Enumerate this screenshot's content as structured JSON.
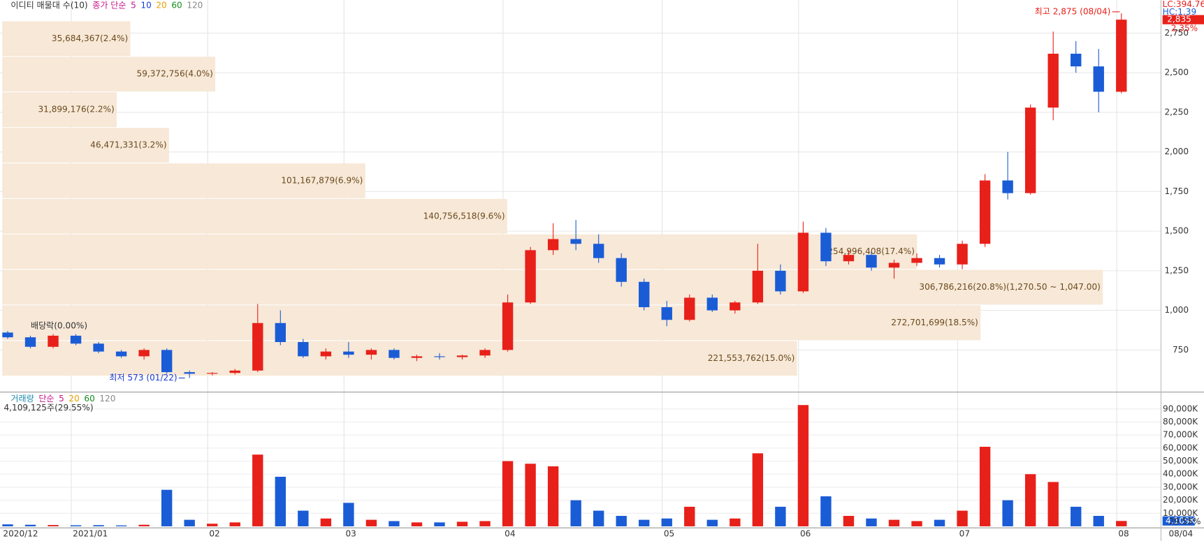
{
  "chart_data": {
    "type": "candlestick",
    "legend": [
      "이디티 매물대 수(10)",
      "종가 단순",
      "5",
      "10",
      "20",
      "60",
      "120"
    ],
    "legend_colors": [
      "#333",
      "#c8168c",
      "#c8168c",
      "#1a3cd6",
      "#e8a000",
      "#13901a",
      "#888"
    ],
    "categories": [
      "2020/12",
      null,
      null,
      "2021/01",
      null,
      null,
      null,
      null,
      null,
      "02",
      null,
      null,
      null,
      null,
      null,
      "03",
      null,
      null,
      null,
      null,
      null,
      null,
      "04",
      null,
      null,
      null,
      null,
      null,
      null,
      "05",
      null,
      null,
      null,
      null,
      null,
      "06",
      null,
      null,
      null,
      null,
      null,
      null,
      "07",
      null,
      null,
      null,
      null,
      null,
      null,
      "08"
    ],
    "last_date": "08/04",
    "open": [
      860,
      830,
      770,
      840,
      790,
      740,
      710,
      750,
      610,
      600,
      605,
      620,
      920,
      800,
      710,
      740,
      720,
      750,
      700,
      710,
      705,
      715,
      750,
      1050,
      1380,
      1450,
      1420,
      1330,
      1180,
      1020,
      940,
      1080,
      1000,
      1050,
      1250,
      1120,
      1490,
      1310,
      1350,
      1270,
      1300,
      1330,
      1290,
      1420,
      1820,
      1740,
      2280,
      2620,
      2540,
      2380
    ],
    "high": [
      870,
      840,
      850,
      850,
      800,
      750,
      760,
      760,
      620,
      610,
      630,
      1040,
      1000,
      820,
      760,
      800,
      760,
      760,
      720,
      730,
      720,
      760,
      1100,
      1400,
      1550,
      1570,
      1480,
      1360,
      1200,
      1060,
      1100,
      1100,
      1060,
      1420,
      1290,
      1560,
      1520,
      1380,
      1370,
      1320,
      1360,
      1350,
      1440,
      1860,
      2000,
      2300,
      2760,
      2700,
      2650,
      2875
    ],
    "low": [
      820,
      760,
      760,
      780,
      730,
      700,
      690,
      600,
      573,
      590,
      595,
      610,
      780,
      700,
      690,
      700,
      690,
      690,
      680,
      690,
      690,
      700,
      740,
      1040,
      1350,
      1380,
      1300,
      1150,
      1000,
      900,
      930,
      990,
      980,
      1040,
      1100,
      1110,
      1280,
      1290,
      1250,
      1200,
      1280,
      1270,
      1260,
      1400,
      1700,
      1730,
      2200,
      2500,
      2250,
      2370
    ],
    "close": [
      830,
      770,
      840,
      790,
      740,
      710,
      750,
      610,
      600,
      605,
      620,
      920,
      800,
      710,
      740,
      720,
      750,
      700,
      710,
      705,
      715,
      750,
      1050,
      1380,
      1450,
      1420,
      1330,
      1180,
      1020,
      940,
      1080,
      1000,
      1050,
      1250,
      1120,
      1490,
      1310,
      1350,
      1270,
      1300,
      1330,
      1290,
      1420,
      1820,
      1740,
      2280,
      2620,
      2540,
      2380,
      2835
    ],
    "up_color": "#e8201a",
    "down_color": "#1a5cd6",
    "ylim": [
      489,
      2910
    ],
    "yticks": [
      {
        "value": 750,
        "label": "750"
      },
      {
        "value": 1000,
        "label": "1,000"
      },
      {
        "value": 1250,
        "label": "1,250"
      },
      {
        "value": 1500,
        "label": "1,500"
      },
      {
        "value": 1750,
        "label": "1,750"
      },
      {
        "value": 2000,
        "label": "2,000"
      },
      {
        "value": 2250,
        "label": "2,250"
      },
      {
        "value": 2500,
        "label": "2,500"
      },
      {
        "value": 2750,
        "label": "2,750"
      }
    ],
    "grid": true,
    "profile": {
      "color": "#f7e8d7",
      "label_color": "#6b4a1e",
      "xlim": [
        0,
        335000000
      ],
      "price_edges": [
        585,
        809,
        1034,
        1258,
        1482,
        1706,
        1930,
        2154,
        2379,
        2603,
        2827
      ],
      "values": [
        221553762,
        272701699,
        306786216,
        254996408,
        140756518,
        101167879,
        46471331,
        31899176,
        59372756,
        35684367
      ],
      "value_labels": [
        "221,553,762(15.0%)",
        "272,701,699(18.5%)",
        "306,786,216(20.8%)(1,270.50 ~ 1,047.00)",
        "254,996,408(17.4%)",
        "140,756,518(9.6%)",
        "101,167,879(6.9%)",
        "46,471,331(3.2%)",
        "31,899,176(2.2%)",
        "59,372,756(4.0%)",
        "35,684,367(2.4%)"
      ]
    },
    "annotations": {
      "high": "최고 2,875 (08/04)",
      "low": "최저 573 (01/22)",
      "dividend": "배당락(0.00%)",
      "lc": "LC:394.76",
      "hc": "HC:1.39",
      "last_price": "2,835",
      "change": "2.35%"
    },
    "volume_panel": {
      "legend": [
        "거래량",
        "단순",
        "5",
        "20",
        "60",
        "120"
      ],
      "legend_colors": [
        "#1a8cb0",
        "#c8168c",
        "#c8168c",
        "#e8a000",
        "#13901a",
        "#888"
      ],
      "info": "4,109,125주(29.55%)",
      "last_label": "4,109K",
      "ratio": "29.55%",
      "values": [
        1500,
        1200,
        1000,
        800,
        900,
        700,
        1200,
        28000,
        5000,
        2000,
        3000,
        55000,
        38000,
        12000,
        6000,
        18000,
        5000,
        4000,
        3000,
        3000,
        3500,
        4000,
        50000,
        48000,
        46000,
        20000,
        12000,
        8000,
        5000,
        6000,
        15000,
        5000,
        6000,
        56000,
        15000,
        93000,
        23000,
        8000,
        6000,
        5000,
        4000,
        5000,
        12000,
        61000,
        20000,
        40000,
        34000,
        15000,
        8000,
        4109
      ],
      "ylim": [
        0,
        100000
      ],
      "yticks": [
        {
          "value": 10000,
          "label": "10,000K"
        },
        {
          "value": 20000,
          "label": "20,000K"
        },
        {
          "value": 30000,
          "label": "30,000K"
        },
        {
          "value": 40000,
          "label": "40,000K"
        },
        {
          "value": 50000,
          "label": "50,000K"
        },
        {
          "value": 60000,
          "label": "60,000K"
        },
        {
          "value": 70000,
          "label": "70,000K"
        },
        {
          "value": 80000,
          "label": "80,000K"
        },
        {
          "value": 90000,
          "label": "90,000K"
        }
      ]
    }
  }
}
